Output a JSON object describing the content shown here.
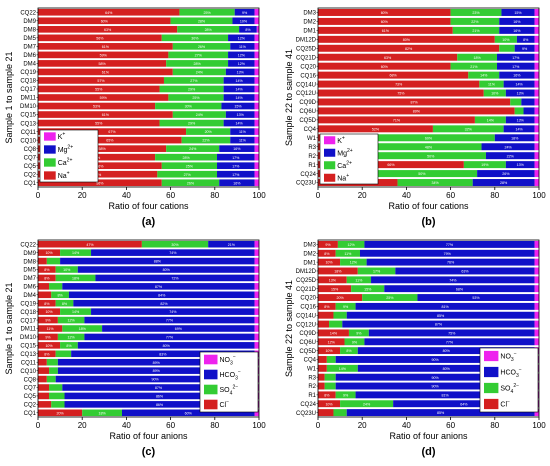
{
  "figure": {
    "panels_count": 4
  },
  "chart_data": [
    {
      "type": "bar",
      "orientation": "horizontal",
      "stacked": true,
      "panel_label": "(a)",
      "xlabel": "Ratio of four cations",
      "ylabel": "Sample 1 to sample 21",
      "xlim": [
        0,
        100
      ],
      "xticks": [
        "0",
        "20",
        "40",
        "60",
        "80",
        "100"
      ],
      "grid": false,
      "legend_position": "bottom-left",
      "legend": [
        "K+",
        "Mg2+",
        "Ca2+",
        "Na+"
      ],
      "categories": [
        "CQ22",
        "DM9",
        "DM8",
        "DM5",
        "DM7",
        "DM6",
        "DM4",
        "CQ19",
        "CQ18",
        "CQ17",
        "DM11",
        "DM10",
        "CQ15",
        "CQ13",
        "CQ11",
        "CQ10",
        "CQ8",
        "CQ7",
        "CQ5",
        "CQ2",
        "CQ1"
      ],
      "series": [
        {
          "name": "Na+",
          "color": "#d42020",
          "values": [
            64,
            60,
            63,
            56,
            61,
            59,
            58,
            61,
            57,
            55,
            59,
            53,
            61,
            55,
            67,
            65,
            58,
            53,
            56,
            54,
            56
          ]
        },
        {
          "name": "Ca2+",
          "color": "#33cc33",
          "values": [
            25,
            28,
            28,
            30,
            26,
            27,
            28,
            24,
            27,
            29,
            25,
            30,
            24,
            29,
            20,
            22,
            24,
            28,
            25,
            27,
            26
          ]
        },
        {
          "name": "Mg2+",
          "color": "#1010c8",
          "values": [
            9,
            10,
            8,
            12,
            11,
            12,
            12,
            13,
            14,
            14,
            14,
            15,
            13,
            14,
            11,
            11,
            16,
            17,
            17,
            17,
            16
          ]
        },
        {
          "name": "K+",
          "color": "#ee22ee",
          "values": [
            2,
            2,
            1,
            2,
            2,
            2,
            2,
            2,
            2,
            2,
            2,
            2,
            2,
            2,
            2,
            2,
            2,
            2,
            2,
            2,
            2
          ]
        }
      ]
    },
    {
      "type": "bar",
      "orientation": "horizontal",
      "stacked": true,
      "panel_label": "(b)",
      "xlabel": "Ratio of four cations",
      "ylabel": "Sample 22 to sample 41",
      "xlim": [
        0,
        100
      ],
      "xticks": [
        "0",
        "20",
        "40",
        "60",
        "80",
        "100"
      ],
      "grid": false,
      "legend_position": "bottom-left",
      "legend": [
        "K+",
        "Mg2+",
        "Ca2+",
        "Na+"
      ],
      "categories": [
        "DM3",
        "DM2",
        "DM1",
        "DM12D",
        "CQ25D",
        "CQ21D",
        "CQ20",
        "CQ16",
        "CQ14U",
        "CQ12U",
        "CQ9D",
        "CQ6U",
        "CQ5D",
        "CQ4",
        "W1",
        "R3",
        "R2",
        "R1",
        "CQ24",
        "CQ23U"
      ],
      "series": [
        {
          "name": "Na+",
          "color": "#d42020",
          "values": [
            60,
            60,
            61,
            80,
            82,
            63,
            60,
            68,
            73,
            75,
            87,
            89,
            71,
            52,
            20,
            26,
            26,
            66,
            22,
            36
          ]
        },
        {
          "name": "Ca2+",
          "color": "#33cc33",
          "values": [
            23,
            22,
            21,
            10,
            7,
            18,
            21,
            14,
            11,
            10,
            5,
            4,
            14,
            32,
            60,
            48,
            50,
            19,
            50,
            34
          ]
        },
        {
          "name": "Mg2+",
          "color": "#1010c8",
          "values": [
            15,
            16,
            16,
            8,
            9,
            17,
            17,
            16,
            14,
            13,
            6,
            5,
            13,
            14,
            18,
            24,
            22,
            13,
            26,
            28
          ]
        },
        {
          "name": "K+",
          "color": "#ee22ee",
          "values": [
            2,
            2,
            2,
            2,
            2,
            2,
            2,
            2,
            2,
            2,
            2,
            2,
            2,
            2,
            2,
            2,
            2,
            2,
            2,
            2
          ]
        }
      ]
    },
    {
      "type": "bar",
      "orientation": "horizontal",
      "stacked": true,
      "panel_label": "(c)",
      "xlabel": "Ratio of four anions",
      "ylabel": "Sample 1 to sample 21",
      "xlim": [
        0,
        100
      ],
      "xticks": [
        "0",
        "20",
        "40",
        "60",
        "80",
        "100"
      ],
      "grid": false,
      "legend_position": "bottom-right",
      "legend": [
        "NO3-",
        "HCO3-",
        "SO4 2-",
        "Cl-"
      ],
      "categories": [
        "CQ22",
        "DM9",
        "DM8",
        "DM5",
        "DM7",
        "DM6",
        "DM4",
        "CQ19",
        "CQ18",
        "CQ17",
        "DM11",
        "DM10",
        "CQ15",
        "CQ13",
        "CQ11",
        "CQ10",
        "CQ8",
        "CQ7",
        "CQ5",
        "CQ2",
        "CQ1"
      ],
      "series": [
        {
          "name": "Cl-",
          "color": "#d42020",
          "values": [
            47,
            10,
            4,
            8,
            8,
            5,
            6,
            8,
            10,
            9,
            11,
            9,
            10,
            8,
            4,
            5,
            4,
            5,
            5,
            6,
            20
          ]
        },
        {
          "name": "SO4 2-",
          "color": "#33cc33",
          "values": [
            30,
            14,
            6,
            10,
            18,
            6,
            8,
            8,
            14,
            12,
            18,
            12,
            8,
            7,
            5,
            4,
            4,
            6,
            7,
            6,
            18
          ]
        },
        {
          "name": "HCO3-",
          "color": "#1010c8",
          "values": [
            21,
            74,
            88,
            80,
            72,
            87,
            84,
            82,
            74,
            77,
            69,
            77,
            80,
            83,
            89,
            89,
            90,
            87,
            86,
            86,
            60
          ]
        },
        {
          "name": "NO3-",
          "color": "#ee22ee",
          "values": [
            2,
            2,
            2,
            2,
            2,
            2,
            2,
            2,
            2,
            2,
            2,
            2,
            2,
            2,
            2,
            2,
            2,
            2,
            2,
            2,
            2
          ]
        }
      ]
    },
    {
      "type": "bar",
      "orientation": "horizontal",
      "stacked": true,
      "panel_label": "(d)",
      "xlabel": "Ratio of four anions",
      "ylabel": "Sample 22 to sample 41",
      "xlim": [
        0,
        100
      ],
      "xticks": [
        "0",
        "20",
        "40",
        "60",
        "80",
        "100"
      ],
      "grid": false,
      "legend_position": "bottom-right",
      "legend": [
        "NO3-",
        "HCO3-",
        "SO4 2-",
        "Cl-"
      ],
      "categories": [
        "DM3",
        "DM2",
        "DM1",
        "DM12D",
        "CQ25D",
        "CQ21D",
        "CQ20",
        "CQ16",
        "CQ14U",
        "CQ12U",
        "CQ9D",
        "CQ6U",
        "CQ5D",
        "CQ4",
        "W1",
        "R3",
        "R2",
        "R1",
        "CQ24",
        "CQ23U"
      ],
      "series": [
        {
          "name": "Cl-",
          "color": "#d42020",
          "values": [
            9,
            8,
            10,
            18,
            13,
            15,
            20,
            8,
            7,
            5,
            14,
            12,
            10,
            4,
            4,
            3,
            3,
            8,
            10,
            7
          ]
        },
        {
          "name": "SO4 2-",
          "color": "#33cc33",
          "values": [
            12,
            11,
            12,
            17,
            11,
            15,
            25,
            9,
            6,
            6,
            9,
            9,
            8,
            4,
            14,
            5,
            5,
            9,
            24,
            6
          ]
        },
        {
          "name": "HCO3-",
          "color": "#1010c8",
          "values": [
            77,
            79,
            76,
            63,
            74,
            68,
            53,
            81,
            85,
            87,
            75,
            77,
            80,
            90,
            80,
            90,
            90,
            81,
            64,
            85
          ]
        },
        {
          "name": "NO3-",
          "color": "#ee22ee",
          "values": [
            2,
            2,
            2,
            2,
            2,
            2,
            2,
            2,
            2,
            2,
            2,
            2,
            2,
            2,
            2,
            2,
            2,
            2,
            2,
            2
          ]
        }
      ]
    }
  ]
}
